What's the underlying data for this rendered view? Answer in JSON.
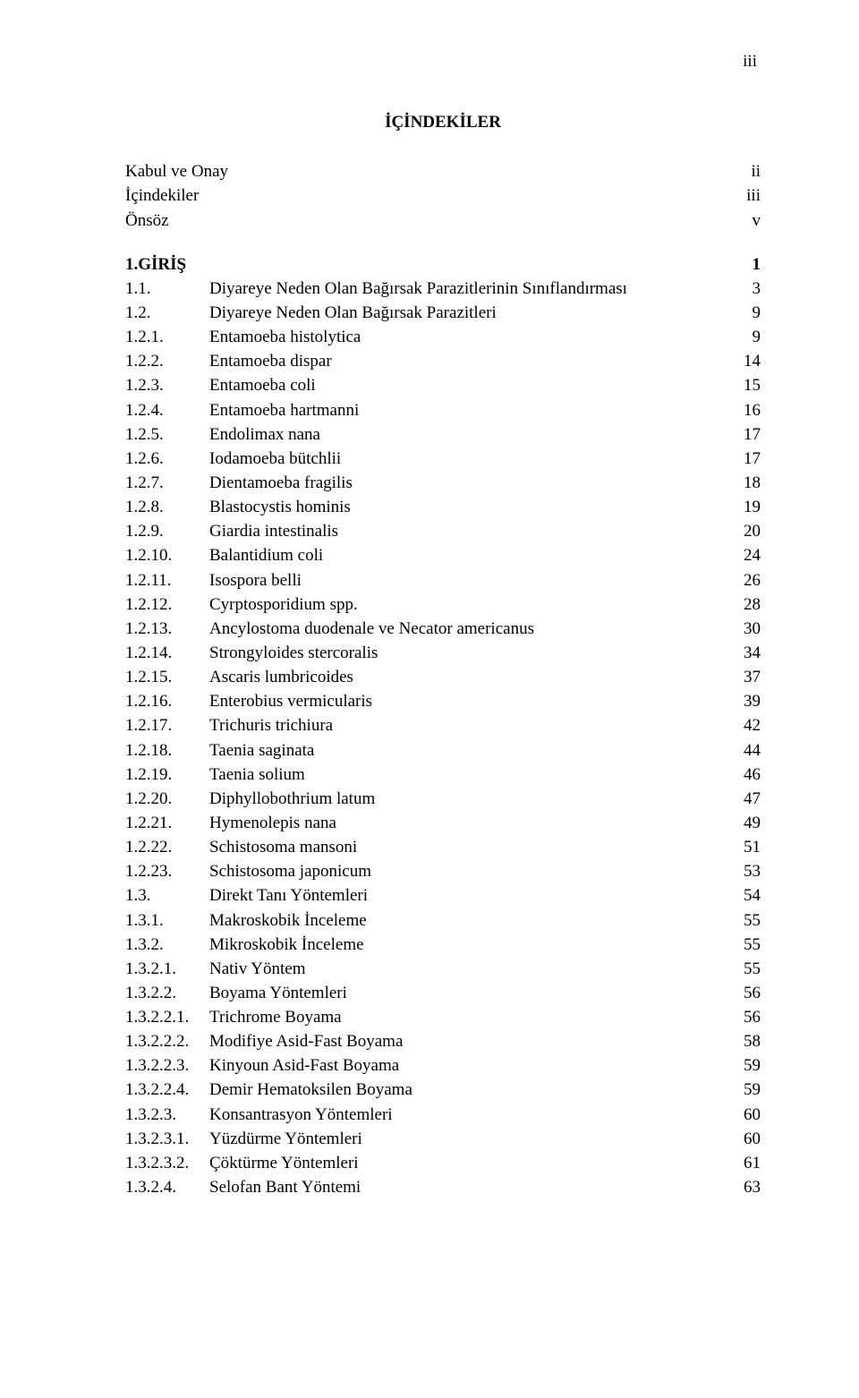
{
  "page": {
    "roman_numeral": "iii"
  },
  "title": "İÇİNDEKİLER",
  "front": [
    {
      "num": "",
      "label": "Kabul ve Onay",
      "page": "ii",
      "cls": "w0"
    },
    {
      "num": "",
      "label": "İçindekiler",
      "page": "iii",
      "cls": "w0"
    },
    {
      "num": "",
      "label": "Önsöz",
      "page": "v",
      "cls": "w0"
    }
  ],
  "entries": [
    {
      "num": "1.GİRİŞ",
      "label": "",
      "page": "1",
      "cls": "w1",
      "bold": true
    },
    {
      "num": "1.1.",
      "label": "Diyareye Neden Olan Bağırsak Parazitlerinin Sınıflandırması",
      "page": "3",
      "cls": "w1"
    },
    {
      "num": "1.2.",
      "label": "Diyareye Neden Olan Bağırsak Parazitleri",
      "page": "9",
      "cls": "w1"
    },
    {
      "num": "1.2.1.",
      "label": "Entamoeba histolytica",
      "page": "9",
      "cls": "w1"
    },
    {
      "num": "1.2.2.",
      "label": "Entamoeba dispar",
      "page": "14",
      "cls": "w1"
    },
    {
      "num": "1.2.3.",
      "label": "Entamoeba coli",
      "page": "15",
      "cls": "w1"
    },
    {
      "num": "1.2.4.",
      "label": "Entamoeba hartmanni",
      "page": "16",
      "cls": "w1"
    },
    {
      "num": "1.2.5.",
      "label": "Endolimax nana",
      "page": "17",
      "cls": "w1"
    },
    {
      "num": "1.2.6.",
      "label": "Iodamoeba bütchlii",
      "page": "17",
      "cls": "w1"
    },
    {
      "num": "1.2.7.",
      "label": "Dientamoeba fragilis",
      "page": "18",
      "cls": "w1"
    },
    {
      "num": "1.2.8.",
      "label": "Blastocystis hominis",
      "page": "19",
      "cls": "w1"
    },
    {
      "num": "1.2.9.",
      "label": "Giardia intestinalis",
      "page": "20",
      "cls": "w1"
    },
    {
      "num": "1.2.10.",
      "label": "Balantidium coli",
      "page": "24",
      "cls": "w1"
    },
    {
      "num": "1.2.11.",
      "label": "Isospora belli",
      "page": "26",
      "cls": "w1"
    },
    {
      "num": "1.2.12.",
      "label": "Cyrptosporidium spp.",
      "page": "28",
      "cls": "w1"
    },
    {
      "num": "1.2.13.",
      "label": "Ancylostoma duodenale ve Necator americanus",
      "page": "30",
      "cls": "w1"
    },
    {
      "num": "1.2.14.",
      "label": "Strongyloides stercoralis",
      "page": "34",
      "cls": "w1"
    },
    {
      "num": "1.2.15.",
      "label": "Ascaris lumbricoides",
      "page": "37",
      "cls": "w1"
    },
    {
      "num": "1.2.16.",
      "label": "Enterobius vermicularis",
      "page": "39",
      "cls": "w1"
    },
    {
      "num": "1.2.17.",
      "label": "Trichuris trichiura",
      "page": "42",
      "cls": "w1"
    },
    {
      "num": "1.2.18.",
      "label": "Taenia saginata",
      "page": "44",
      "cls": "w1"
    },
    {
      "num": "1.2.19.",
      "label": "Taenia solium",
      "page": "46",
      "cls": "w1"
    },
    {
      "num": "1.2.20.",
      "label": "Diphyllobothrium latum",
      "page": "47",
      "cls": "w1"
    },
    {
      "num": "1.2.21.",
      "label": "Hymenolepis nana",
      "page": "49",
      "cls": "w1"
    },
    {
      "num": "1.2.22.",
      "label": "Schistosoma mansoni",
      "page": "51",
      "cls": "w1"
    },
    {
      "num": "1.2.23.",
      "label": "Schistosoma japonicum",
      "page": "53",
      "cls": "w1"
    },
    {
      "num": "1.3.",
      "label": "Direkt Tanı Yöntemleri",
      "page": "54",
      "cls": "w1"
    },
    {
      "num": "1.3.1.",
      "label": "Makroskobik İnceleme",
      "page": "55",
      "cls": "w1"
    },
    {
      "num": "1.3.2.",
      "label": "Mikroskobik İnceleme",
      "page": "55",
      "cls": "w1"
    },
    {
      "num": "1.3.2.1.",
      "label": "Nativ Yöntem",
      "page": "55",
      "cls": "w2"
    },
    {
      "num": "1.3.2.2.",
      "label": "Boyama Yöntemleri",
      "page": "56",
      "cls": "w2"
    },
    {
      "num": "1.3.2.2.1.",
      "label": "Trichrome Boyama",
      "page": "56",
      "cls": "w3"
    },
    {
      "num": "1.3.2.2.2.",
      "label": "Modifiye Asid-Fast Boyama",
      "page": "58",
      "cls": "w3"
    },
    {
      "num": "1.3.2.2.3.",
      "label": "Kinyoun Asid-Fast Boyama",
      "page": "59",
      "cls": "w3"
    },
    {
      "num": "1.3.2.2.4.",
      "label": "Demir Hematoksilen Boyama",
      "page": "59",
      "cls": "w3"
    },
    {
      "num": "1.3.2.3.",
      "label": "Konsantrasyon Yöntemleri",
      "page": "60",
      "cls": "w2"
    },
    {
      "num": "1.3.2.3.1.",
      "label": "Yüzdürme Yöntemleri",
      "page": "60",
      "cls": "w3"
    },
    {
      "num": "1.3.2.3.2.",
      "label": "Çöktürme Yöntemleri",
      "page": "61",
      "cls": "w3"
    },
    {
      "num": "1.3.2.4.",
      "label": "Selofan Bant Yöntemi",
      "page": "63",
      "cls": "w2"
    }
  ]
}
